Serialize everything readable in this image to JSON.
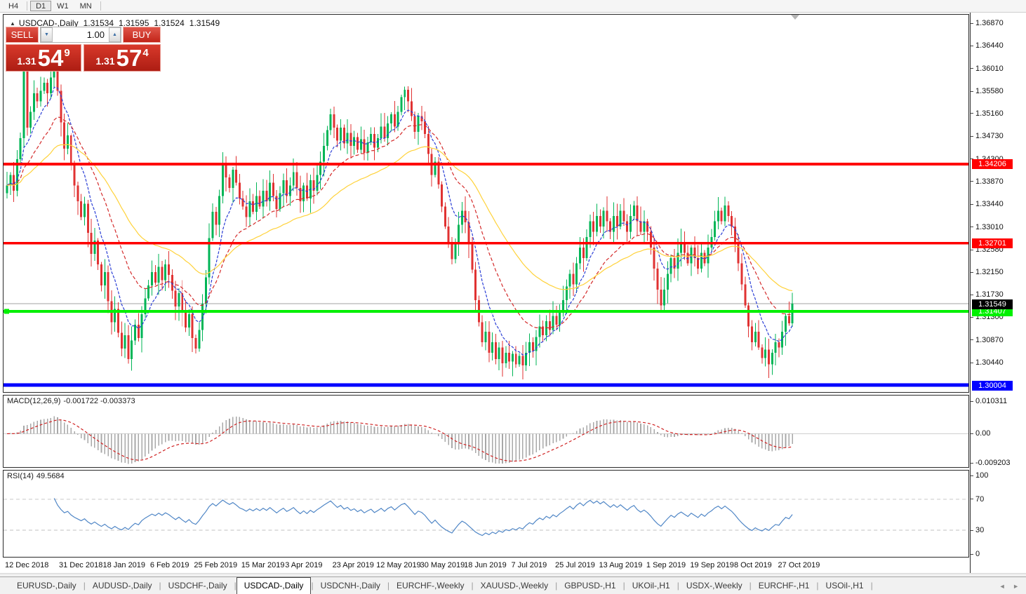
{
  "toolbar": {
    "timeframes": [
      {
        "label": "H4",
        "active": false
      },
      {
        "label": "D1",
        "active": true
      },
      {
        "label": "W1",
        "active": false
      },
      {
        "label": "MN",
        "active": false
      }
    ]
  },
  "title": {
    "collapse_arrow": "▲",
    "symbol": "USDCAD-,Daily",
    "open": "1.31534",
    "high": "1.31595",
    "low": "1.31524",
    "close": "1.31549"
  },
  "trade_panel": {
    "sell_label": "SELL",
    "buy_label": "BUY",
    "volume": "1.00",
    "spinner_down": "▼",
    "spinner_up": "▲",
    "sell_price": {
      "prefix": "1.31",
      "big": "54",
      "sup": "9"
    },
    "buy_price": {
      "prefix": "1.31",
      "big": "57",
      "sup": "4"
    }
  },
  "indicator_labels": {
    "macd_name": "MACD(12,26,9)",
    "macd_values": "-0.001722 -0.003373",
    "rsi_name": "RSI(14)",
    "rsi_value": "49.5684"
  },
  "chart_data": {
    "type": "candlestick",
    "symbol": "USDCAD",
    "timeframe": "Daily",
    "colors": {
      "up": "#00b556",
      "down": "#e03232",
      "ma_fast": "#2b3fd6",
      "ma_med": "#d42a2a",
      "ma_slow": "#ffd23a",
      "macd_hist": "#a8a8a8",
      "macd_signal": "#cf2020",
      "macd_zero": "#d0d0d0",
      "rsi": "#4f86c6",
      "rsi_level": "#c0c0c0",
      "level_red": "#ff0000",
      "level_green": "#00f000",
      "level_blue": "#0000ff",
      "current_line": "#a0a0a0",
      "current_tag": "#000000"
    },
    "price_axis": {
      "min": 1.29872,
      "max": 1.37043,
      "ticks": [
        "1.36870",
        "1.36440",
        "1.36010",
        "1.35580",
        "1.35160",
        "1.34730",
        "1.34300",
        "1.33870",
        "1.33440",
        "1.33010",
        "1.32580",
        "1.32150",
        "1.31730",
        "1.31300",
        "1.30870",
        "1.30440"
      ]
    },
    "levels": [
      {
        "price": 1.34206,
        "label": "1.34206",
        "color_key": "level_red",
        "width": 4
      },
      {
        "price": 1.32701,
        "label": "1.32701",
        "color_key": "level_red",
        "width": 4
      },
      {
        "price": 1.31407,
        "label": "1.31407",
        "color_key": "level_green",
        "width": 4,
        "marker": true
      },
      {
        "price": 1.30004,
        "label": "1.30004",
        "color_key": "level_blue",
        "width": 5
      }
    ],
    "current_price": {
      "value": 1.31549,
      "label": "1.31549"
    },
    "moving_averages": [
      {
        "period": 8,
        "color_key": "ma_fast",
        "dash": "4 2"
      },
      {
        "period": 20,
        "color_key": "ma_med",
        "dash": "5 3"
      },
      {
        "period": 45,
        "color_key": "ma_slow",
        "dash": ""
      }
    ],
    "macd": {
      "fast": 12,
      "slow": 26,
      "signal": 9,
      "axis_max": 0.010311,
      "axis_min": -0.009203,
      "axis_labels": [
        {
          "v": 0.010311,
          "label": "0.010311"
        },
        {
          "v": 0,
          "label": "0.00"
        },
        {
          "v": -0.009203,
          "label": "-0.009203"
        }
      ]
    },
    "rsi": {
      "period": 14,
      "levels": [
        70,
        30
      ],
      "axis_labels": [
        {
          "v": 100,
          "label": "100"
        },
        {
          "v": 70,
          "label": "70"
        },
        {
          "v": 30,
          "label": "30"
        },
        {
          "v": 0,
          "label": "0"
        }
      ]
    },
    "date_ticks": [
      {
        "label": "12 Dec 2018",
        "i": 0
      },
      {
        "label": "31 Dec 2018",
        "i": 16
      },
      {
        "label": "18 Jan 2019",
        "i": 29
      },
      {
        "label": "6 Feb 2019",
        "i": 43
      },
      {
        "label": "25 Feb 2019",
        "i": 56
      },
      {
        "label": "15 Mar 2019",
        "i": 70
      },
      {
        "label": "3 Apr 2019",
        "i": 83
      },
      {
        "label": "23 Apr 2019",
        "i": 97
      },
      {
        "label": "12 May 2019",
        "i": 110
      },
      {
        "label": "30 May 2019",
        "i": 123
      },
      {
        "label": "18 Jun 2019",
        "i": 136
      },
      {
        "label": "7 Jul 2019",
        "i": 150
      },
      {
        "label": "25 Jul 2019",
        "i": 163
      },
      {
        "label": "13 Aug 2019",
        "i": 176
      },
      {
        "label": "1 Sep 2019",
        "i": 190
      },
      {
        "label": "19 Sep 2019",
        "i": 203
      },
      {
        "label": "8 Oct 2019",
        "i": 216
      },
      {
        "label": "27 Oct 2019",
        "i": 229
      }
    ],
    "closes": [
      1.338,
      1.34,
      1.337,
      1.343,
      1.347,
      1.36,
      1.349,
      1.352,
      1.3555,
      1.354,
      1.356,
      1.3575,
      1.3555,
      1.3585,
      1.364,
      1.356,
      1.35,
      1.345,
      1.3475,
      1.342,
      1.338,
      1.335,
      1.332,
      1.3345,
      1.329,
      1.325,
      1.3275,
      1.323,
      1.319,
      1.3215,
      1.316,
      1.312,
      1.3145,
      1.31,
      1.307,
      1.3095,
      1.305,
      1.3085,
      1.3115,
      1.309,
      1.3135,
      1.3165,
      1.319,
      1.3215,
      1.3195,
      1.3225,
      1.32,
      1.323,
      1.321,
      1.318,
      1.315,
      1.3175,
      1.314,
      1.311,
      1.3135,
      1.309,
      1.307,
      1.3105,
      1.3155,
      1.3205,
      1.328,
      1.333,
      1.3305,
      1.336,
      1.342,
      1.3395,
      1.3375,
      1.341,
      1.3385,
      1.3355,
      1.334,
      1.332,
      1.335,
      1.333,
      1.336,
      1.334,
      1.337,
      1.335,
      1.3385,
      1.336,
      1.3335,
      1.3365,
      1.339,
      1.336,
      1.338,
      1.3405,
      1.3375,
      1.335,
      1.338,
      1.3355,
      1.339,
      1.337,
      1.34,
      1.3425,
      1.3455,
      1.3485,
      1.3515,
      1.349,
      1.3465,
      1.349,
      1.346,
      1.348,
      1.3455,
      1.3472,
      1.3448,
      1.3468,
      1.3442,
      1.3462,
      1.3478,
      1.3452,
      1.347,
      1.3492,
      1.347,
      1.3498,
      1.3515,
      1.3492,
      1.352,
      1.3548,
      1.3562,
      1.354,
      1.3512,
      1.3482,
      1.3512,
      1.3502,
      1.3478,
      1.344,
      1.34,
      1.3425,
      1.3382,
      1.334,
      1.3302,
      1.327,
      1.324,
      1.3272,
      1.3305,
      1.3332,
      1.331,
      1.3268,
      1.322,
      1.3162,
      1.312,
      1.3082,
      1.3102,
      1.3062,
      1.3082,
      1.305,
      1.3072,
      1.3042,
      1.3062,
      1.3045,
      1.306,
      1.304,
      1.3056,
      1.3038,
      1.3062,
      1.3082,
      1.3065,
      1.3092,
      1.3112,
      1.3095,
      1.3122,
      1.3105,
      1.3132,
      1.3115,
      1.3142,
      1.3162,
      1.3188,
      1.3212,
      1.3192,
      1.3232,
      1.3262,
      1.3242,
      1.3282,
      1.3312,
      1.3292,
      1.3322,
      1.3302,
      1.3332,
      1.3312,
      1.3292,
      1.3322,
      1.3302,
      1.3332,
      1.3312,
      1.3292,
      1.3322,
      1.3342,
      1.3312,
      1.3292,
      1.3312,
      1.3292,
      1.3262,
      1.3222,
      1.3182,
      1.3152,
      1.3182,
      1.3212,
      1.3242,
      1.3222,
      1.3252,
      1.3272,
      1.3252,
      1.3232,
      1.3262,
      1.3242,
      1.3222,
      1.3252,
      1.3232,
      1.3262,
      1.3282,
      1.3312,
      1.3332,
      1.3312,
      1.3342,
      1.3322,
      1.3302,
      1.3272,
      1.3232,
      1.3192,
      1.3152,
      1.3112,
      1.3082,
      1.3102,
      1.3072,
      1.3052,
      1.3068,
      1.304,
      1.3062,
      1.3082,
      1.3072,
      1.3102,
      1.3132,
      1.3118,
      1.31549
    ]
  },
  "tabs": {
    "items": [
      {
        "label": "EURUSD-,Daily",
        "active": false
      },
      {
        "label": "AUDUSD-,Daily",
        "active": false
      },
      {
        "label": "USDCHF-,Daily",
        "active": false
      },
      {
        "label": "USDCAD-,Daily",
        "active": true
      },
      {
        "label": "USDCNH-,Daily",
        "active": false
      },
      {
        "label": "EURCHF-,Weekly",
        "active": false
      },
      {
        "label": "XAUUSD-,Weekly",
        "active": false
      },
      {
        "label": "GBPUSD-,H1",
        "active": false
      },
      {
        "label": "UKOil-,H1",
        "active": false
      },
      {
        "label": "USDX-,Weekly",
        "active": false
      },
      {
        "label": "EURCHF-,H1",
        "active": false
      },
      {
        "label": "USOil-,H1",
        "active": false
      }
    ],
    "prev_arrow": "◄",
    "next_arrow": "►"
  }
}
